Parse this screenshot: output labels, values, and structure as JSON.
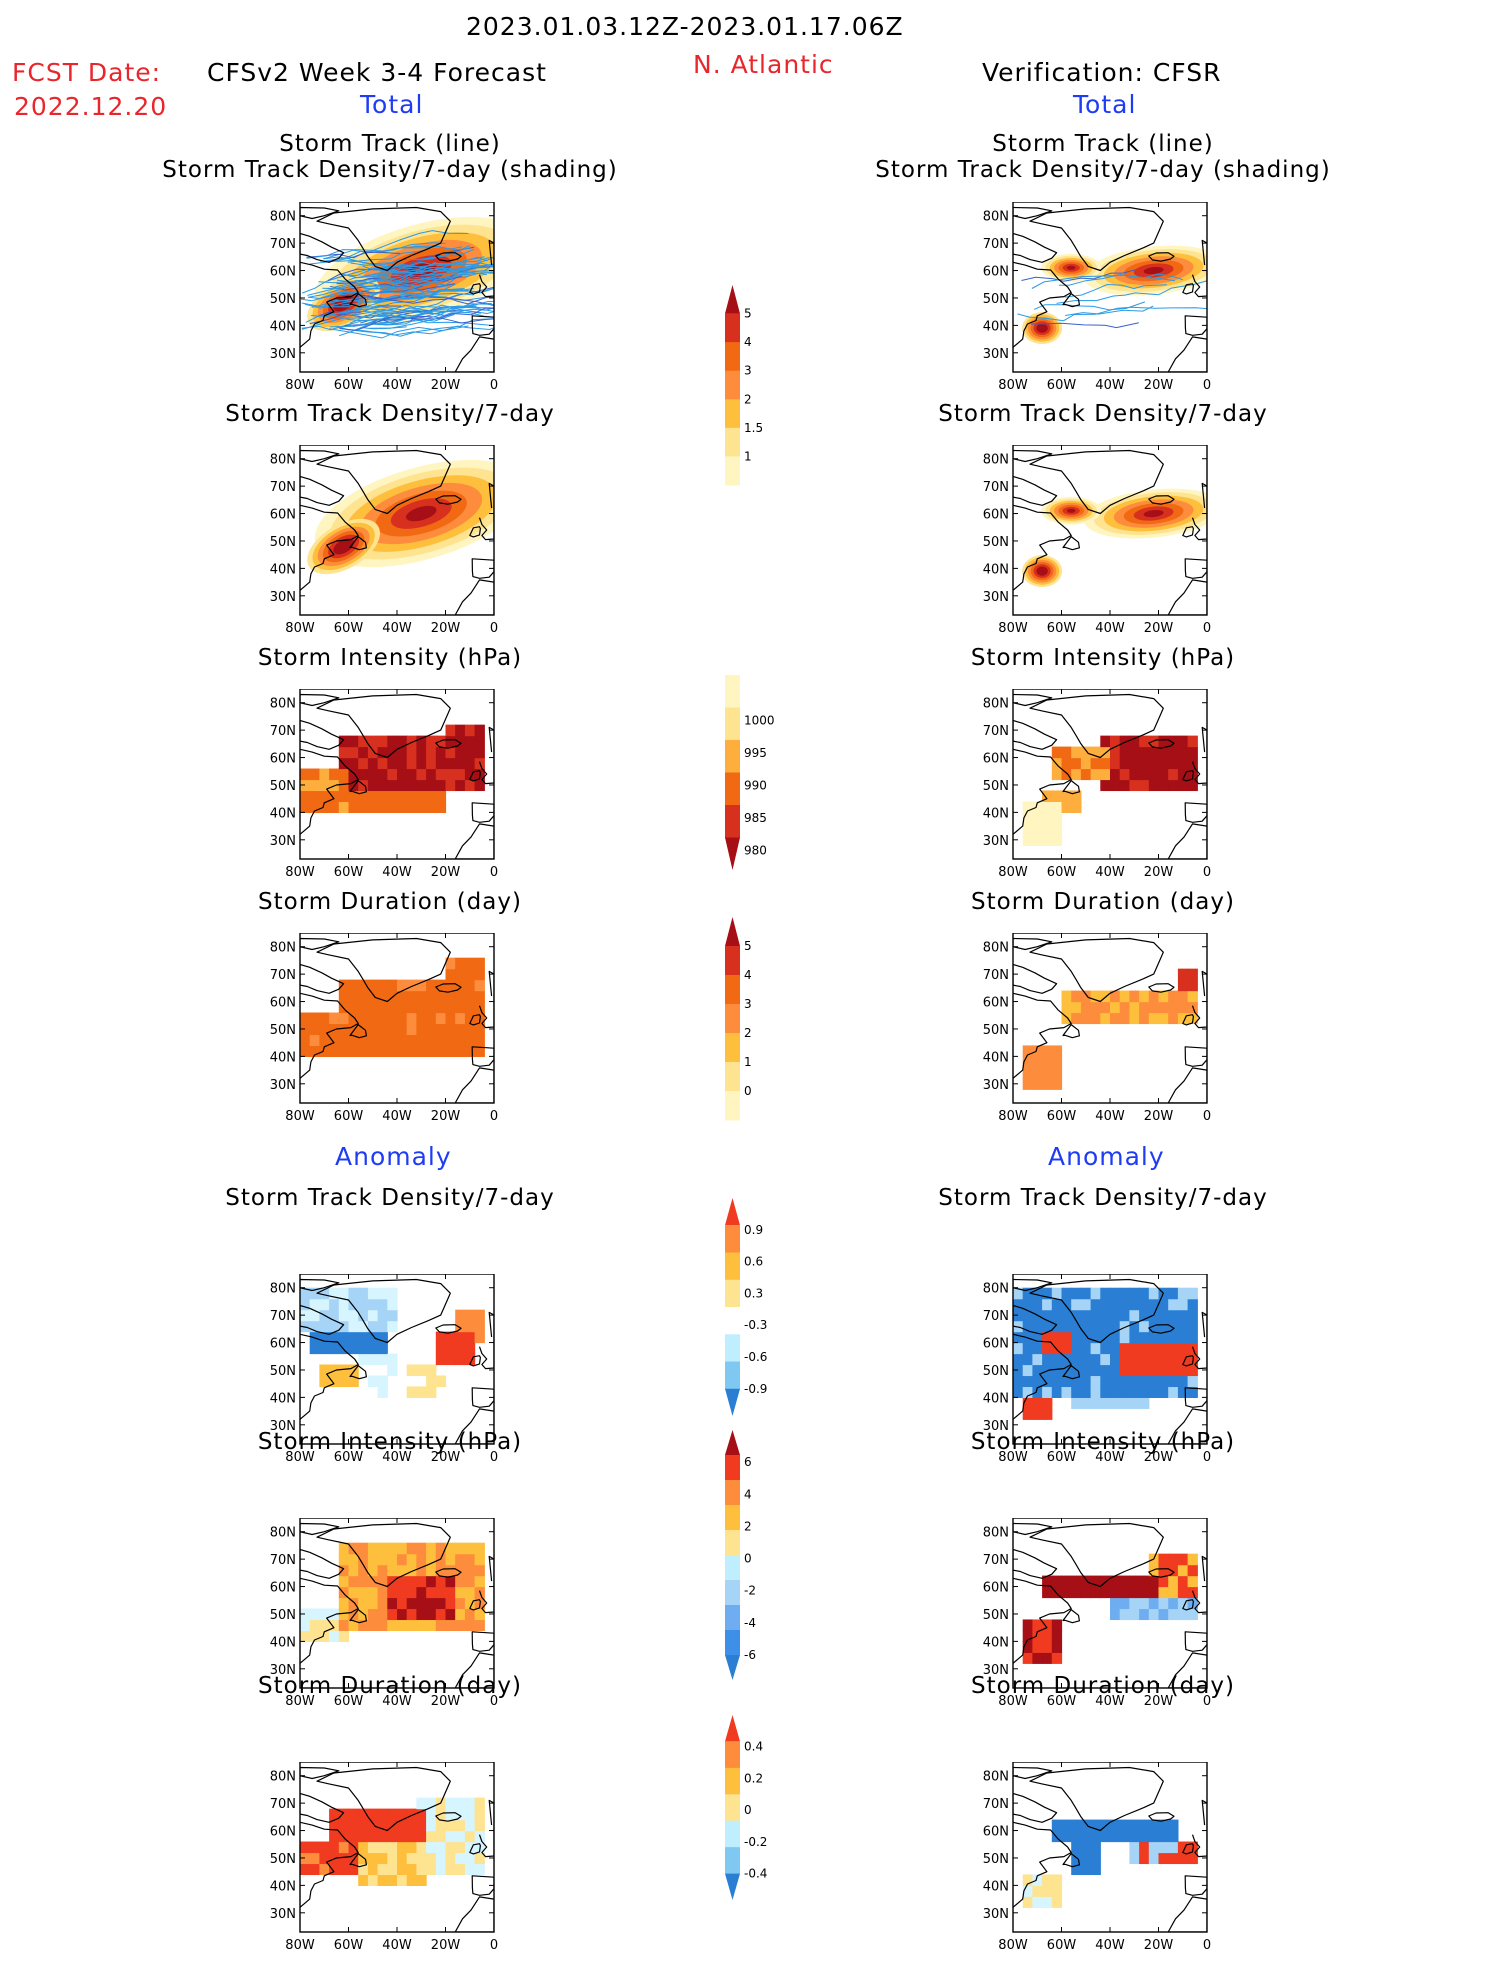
{
  "header": {
    "date_range": "2023.01.03.12Z-2023.01.17.06Z",
    "fcst_label": "FCST Date:",
    "fcst_date": "2022.12.20",
    "left_title": "CFSv2 Week 3-4 Forecast",
    "region": "N. Atlantic",
    "right_title": "Verification: CFSR",
    "total_label": "Total",
    "anomaly_label": "Anomaly"
  },
  "axes": {
    "lat_labels": [
      "80N",
      "70N",
      "60N",
      "50N",
      "40N",
      "30N"
    ],
    "lon_labels": [
      "80W",
      "60W",
      "40W",
      "20W",
      "0"
    ]
  },
  "panel_titles": {
    "track_line": "Storm Track (line)",
    "track_shading": "Storm Track Density/7-day (shading)",
    "density": "Storm Track Density/7-day",
    "intensity": "Storm Intensity (hPa)",
    "duration": "Storm Duration (day)"
  },
  "colorbars": [
    {
      "name": "density-total",
      "labels": [
        "5",
        "4",
        "3",
        "2",
        "1.5",
        "1"
      ],
      "colors": [
        "#a50f15",
        "#d7301f",
        "#f16913",
        "#fd8d3c",
        "#fdbf3c",
        "#fee391",
        "#fff5c0"
      ],
      "top_arrow": true,
      "bottom_arrow": false
    },
    {
      "name": "intensity-total",
      "labels": [
        "1000",
        "995",
        "990",
        "985",
        "980"
      ],
      "colors": [
        "#fff5c0",
        "#fee391",
        "#fdae3c",
        "#f16913",
        "#d7301f",
        "#a50f15"
      ],
      "top_arrow": false,
      "bottom_arrow": true
    },
    {
      "name": "duration-total",
      "labels": [
        "5",
        "4",
        "3",
        "2",
        "1",
        "0"
      ],
      "colors": [
        "#a50f15",
        "#d7301f",
        "#f16913",
        "#fd8d3c",
        "#fdbf3c",
        "#fee391",
        "#fff5c0"
      ],
      "top_arrow": true,
      "bottom_arrow": false
    },
    {
      "name": "density-anomaly",
      "labels": [
        "0.9",
        "0.6",
        "0.3",
        "-0.3",
        "-0.6",
        "-0.9"
      ],
      "colors": [
        "#f03b20",
        "#fd8d3c",
        "#fdbf3c",
        "#fee391",
        "#ffffff",
        "#bfefff",
        "#7ec8f2",
        "#2a7fd4"
      ],
      "top_arrow": true,
      "bottom_arrow": true
    },
    {
      "name": "intensity-anomaly",
      "labels": [
        "6",
        "4",
        "2",
        "0",
        "-2",
        "-4",
        "-6"
      ],
      "colors": [
        "#a50f15",
        "#f03b20",
        "#fd8d3c",
        "#fdbf3c",
        "#fee391",
        "#bfefff",
        "#a6d4f7",
        "#6eaef0",
        "#3d8fe8",
        "#2a7fd4"
      ],
      "top_arrow": true,
      "bottom_arrow": true
    },
    {
      "name": "duration-anomaly",
      "labels": [
        "0.4",
        "0.2",
        "0",
        "-0.2",
        "-0.4"
      ],
      "colors": [
        "#f03b20",
        "#fd8d3c",
        "#fdbf3c",
        "#fee391",
        "#bfefff",
        "#7ec8f2",
        "#2a7fd4"
      ],
      "top_arrow": true,
      "bottom_arrow": true
    }
  ],
  "shading_palette": {
    "density": [
      "#fff5c0",
      "#fee391",
      "#fdbf3c",
      "#fd8d3c",
      "#f16913",
      "#d7301f",
      "#a50f15"
    ],
    "intensity": [
      "#fff5c0",
      "#fee391",
      "#fdae3c",
      "#f16913",
      "#d7301f",
      "#a50f15"
    ],
    "anom_pos": [
      "#fee391",
      "#fdbf3c",
      "#fd8d3c",
      "#f03b20",
      "#a50f15"
    ],
    "anom_neg": [
      "#d6f5ff",
      "#a6d4f7",
      "#6eaef0",
      "#2a7fd4",
      "#1f5fc4"
    ],
    "track_line": "#2a9be6",
    "track_line_dark": "#3a5fcd"
  }
}
